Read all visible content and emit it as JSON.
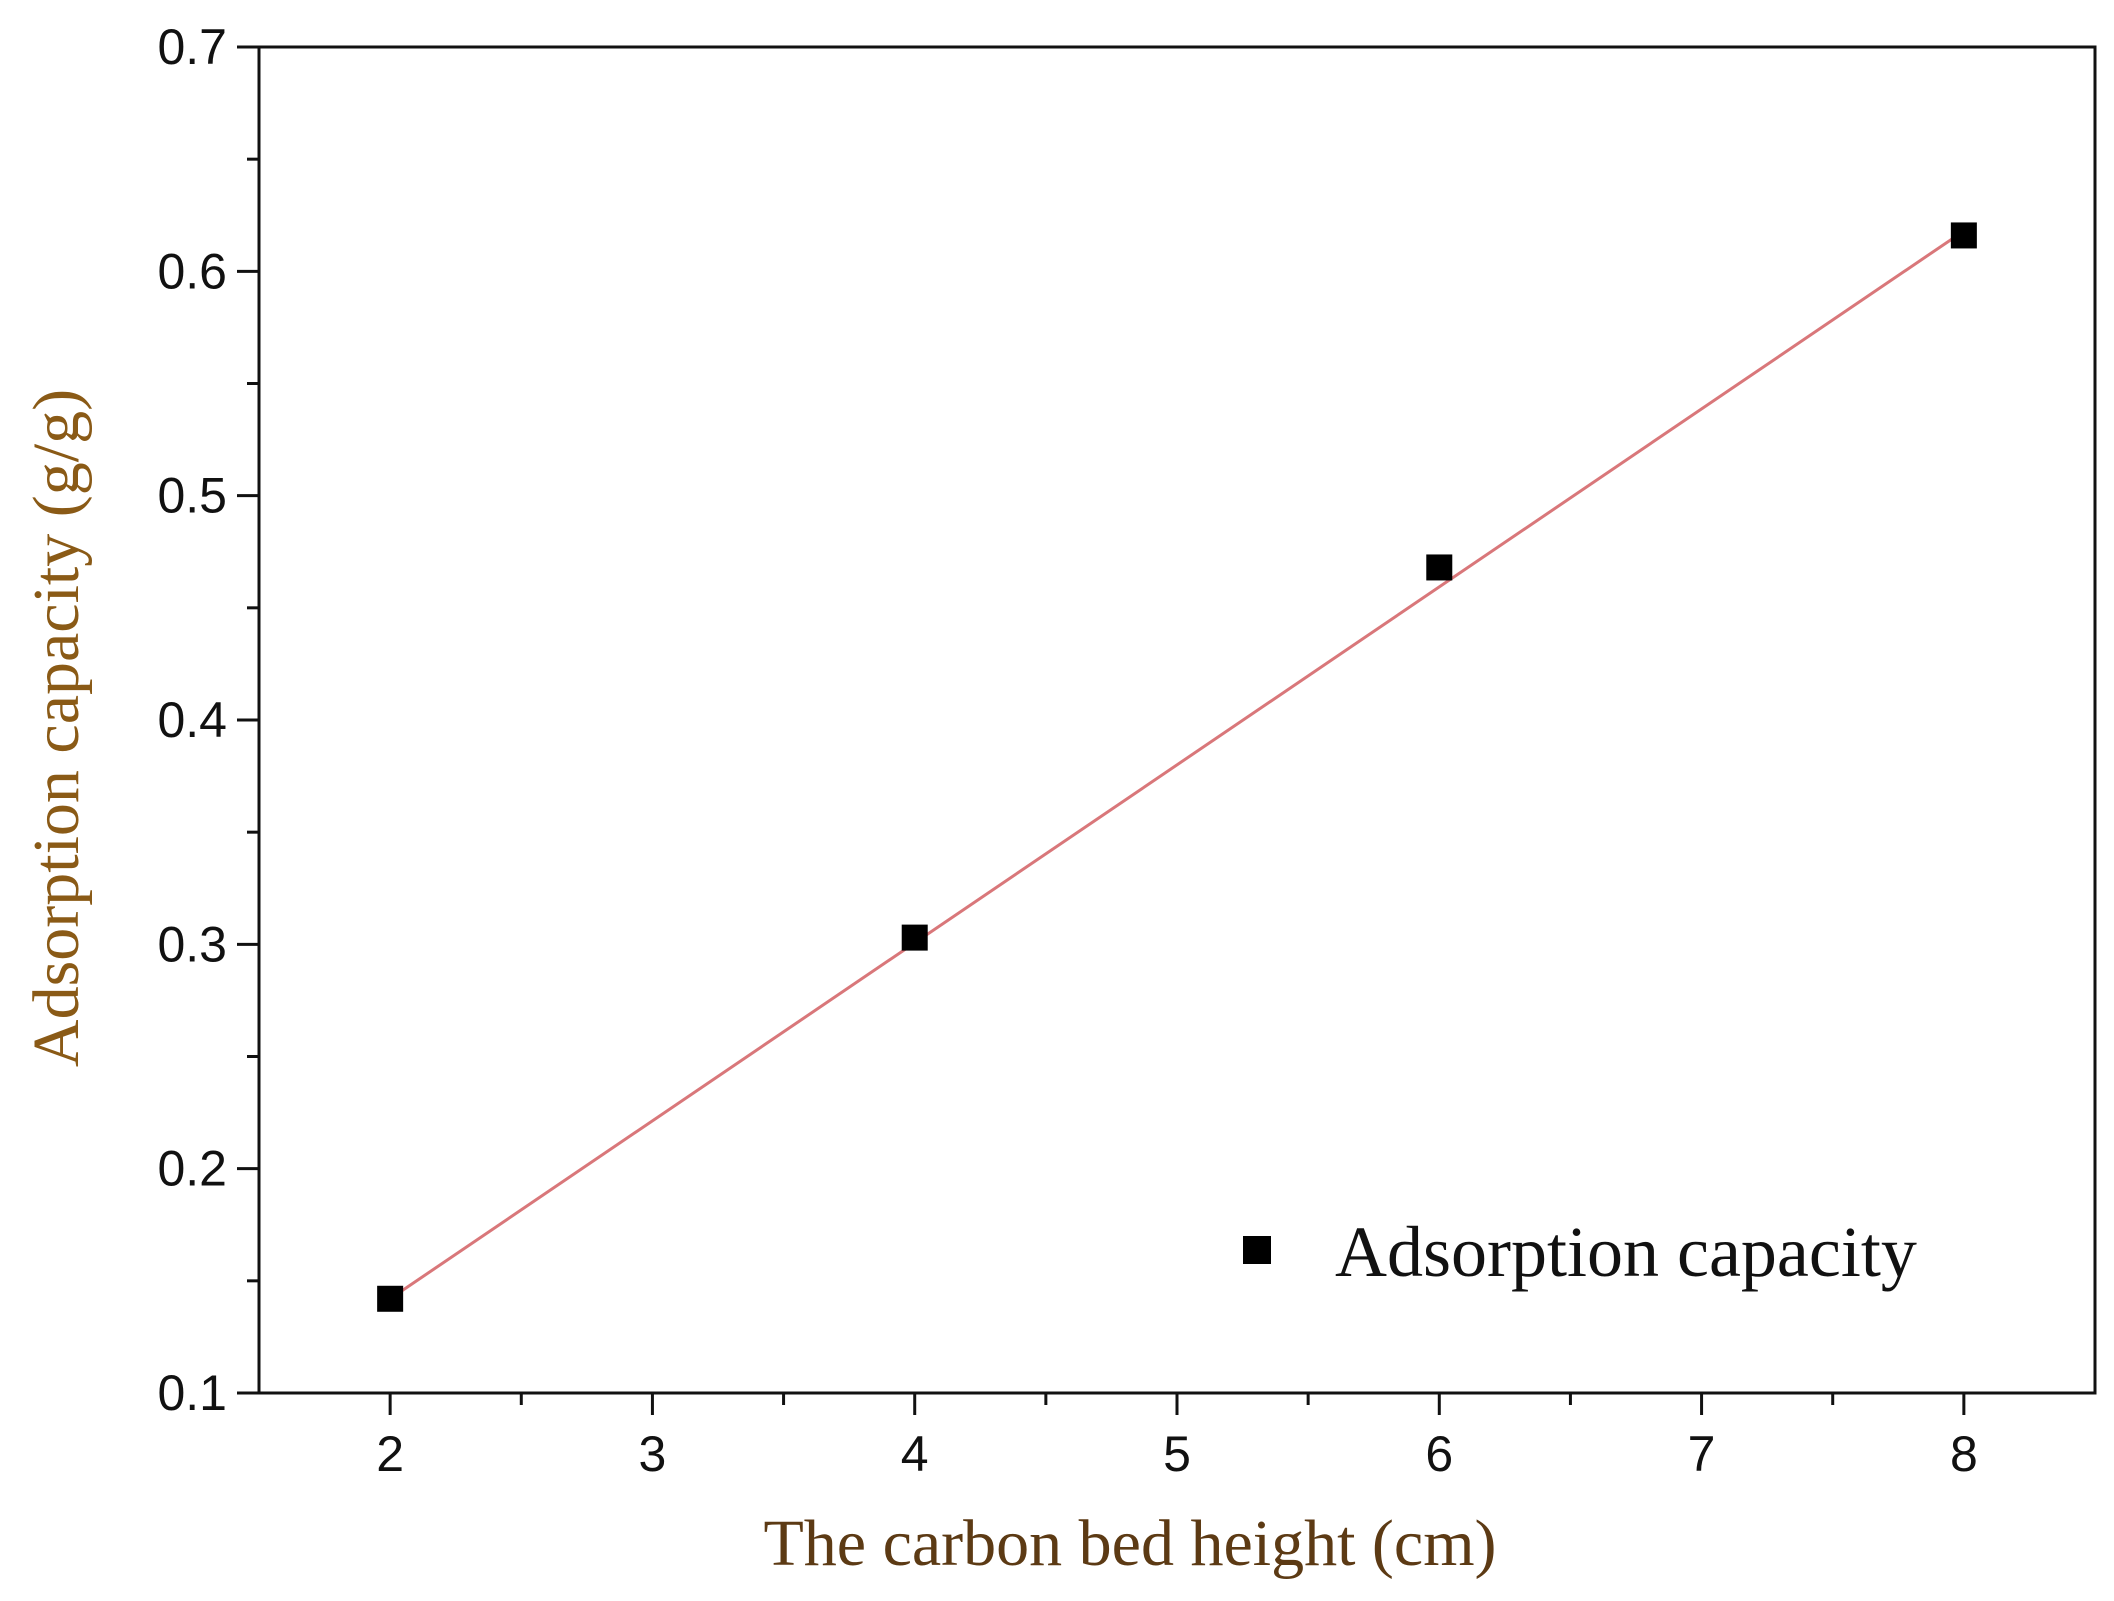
{
  "chart_data": {
    "type": "scatter",
    "title": "",
    "xlabel": "The carbon bed height (cm)",
    "ylabel": "Adsorption capacity (g/g)",
    "xlim": [
      1.5,
      8.5
    ],
    "ylim": [
      0.1,
      0.7
    ],
    "x_ticks": [
      "2",
      "3",
      "4",
      "5",
      "6",
      "7",
      "8"
    ],
    "y_ticks": [
      "0.1",
      "0.2",
      "0.3",
      "0.4",
      "0.5",
      "0.6",
      "0.7"
    ],
    "grid": false,
    "legend_position": "bottom-right",
    "series": [
      {
        "name": "Adsorption capacity",
        "marker": "square",
        "color": "#000000",
        "x": [
          2,
          4,
          6,
          8
        ],
        "y": [
          0.142,
          0.303,
          0.468,
          0.616
        ]
      }
    ],
    "fit_line": {
      "color": "#d9777a",
      "x": [
        2,
        8
      ],
      "y": [
        0.142,
        0.618
      ]
    },
    "colors": {
      "axis": "#111111",
      "axis_title": "#5c3a14",
      "ylabel": "#8a5a16"
    }
  }
}
